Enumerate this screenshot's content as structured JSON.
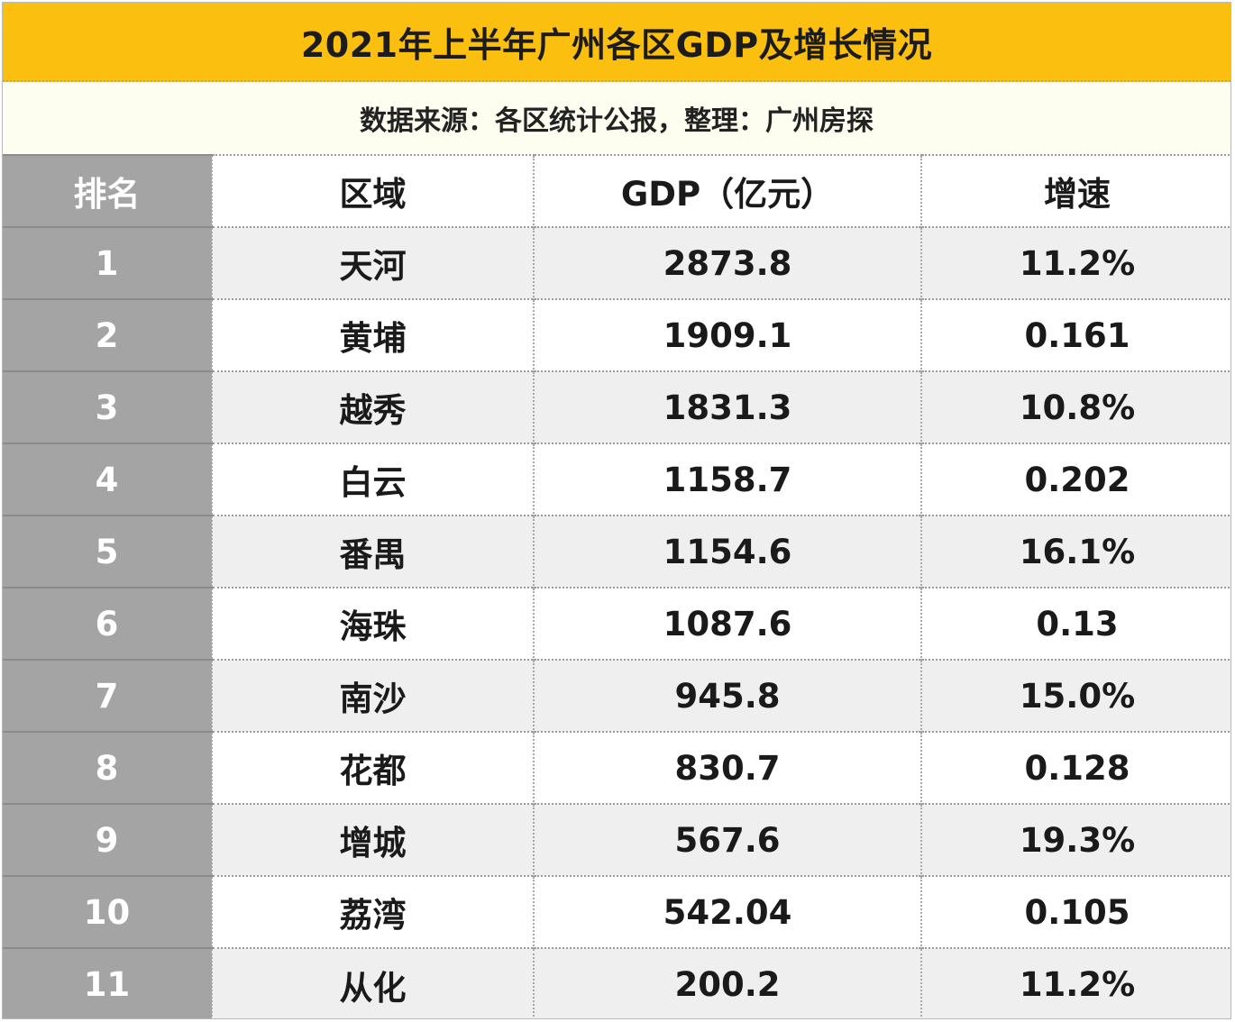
{
  "title": "2021年上半年广州各区GDP及增长情况",
  "source": "数据来源：各区统计公报，整理：广州房探",
  "headers": {
    "rank": "排名",
    "area": "区域",
    "gdp": "GDP（亿元）",
    "rate": "增速"
  },
  "rows": [
    {
      "rank": "1",
      "area": "天河",
      "gdp": "2873.8",
      "rate": "11.2%"
    },
    {
      "rank": "2",
      "area": "黄埔",
      "gdp": "1909.1",
      "rate": "0.161"
    },
    {
      "rank": "3",
      "area": "越秀",
      "gdp": "1831.3",
      "rate": "10.8%"
    },
    {
      "rank": "4",
      "area": "白云",
      "gdp": "1158.7",
      "rate": "0.202"
    },
    {
      "rank": "5",
      "area": "番禺",
      "gdp": "1154.6",
      "rate": "16.1%"
    },
    {
      "rank": "6",
      "area": "海珠",
      "gdp": "1087.6",
      "rate": "0.13"
    },
    {
      "rank": "7",
      "area": "南沙",
      "gdp": "945.8",
      "rate": "15.0%"
    },
    {
      "rank": "8",
      "area": "花都",
      "gdp": "830.7",
      "rate": "0.128"
    },
    {
      "rank": "9",
      "area": "增城",
      "gdp": "567.6",
      "rate": "19.3%"
    },
    {
      "rank": "10",
      "area": "荔湾",
      "gdp": "542.04",
      "rate": "0.105"
    },
    {
      "rank": "11",
      "area": "从化",
      "gdp": "200.2",
      "rate": "11.2%"
    }
  ],
  "colors": {
    "title_bg": "#fbbf10",
    "source_bg": "#fdfdf0",
    "rank_bg": "#a4a4a4",
    "row_alt_bg": "#efefef"
  }
}
